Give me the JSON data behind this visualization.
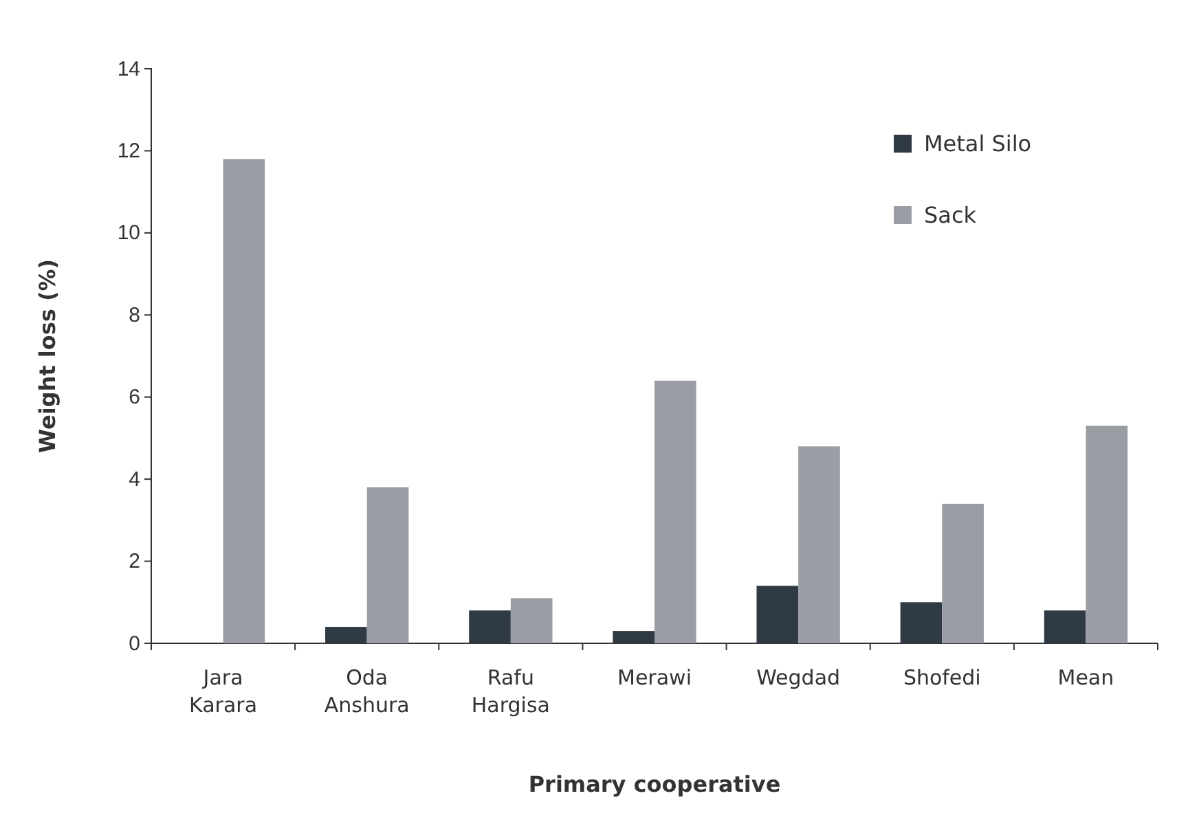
{
  "chart_data": {
    "type": "bar",
    "xlabel": "Primary cooperative",
    "ylabel": "Weight loss (%)",
    "categories": [
      "Jara Karara",
      "Oda Anshura",
      "Rafu Hargisa",
      "Merawi",
      "Wegdad",
      "Shofedi",
      "Mean"
    ],
    "series": [
      {
        "name": "Metal Silo",
        "color": "#2f3a44",
        "values": [
          0,
          0.4,
          0.8,
          0.3,
          1.4,
          1.0,
          0.8
        ]
      },
      {
        "name": "Sack",
        "color": "#9b9da4",
        "values": [
          11.8,
          3.8,
          1.1,
          6.4,
          4.8,
          3.4,
          5.3
        ]
      }
    ],
    "ylim": [
      0,
      14
    ],
    "yticks": [
      0,
      2,
      4,
      6,
      8,
      10,
      12,
      14
    ],
    "grid": false,
    "legend": "top right"
  }
}
